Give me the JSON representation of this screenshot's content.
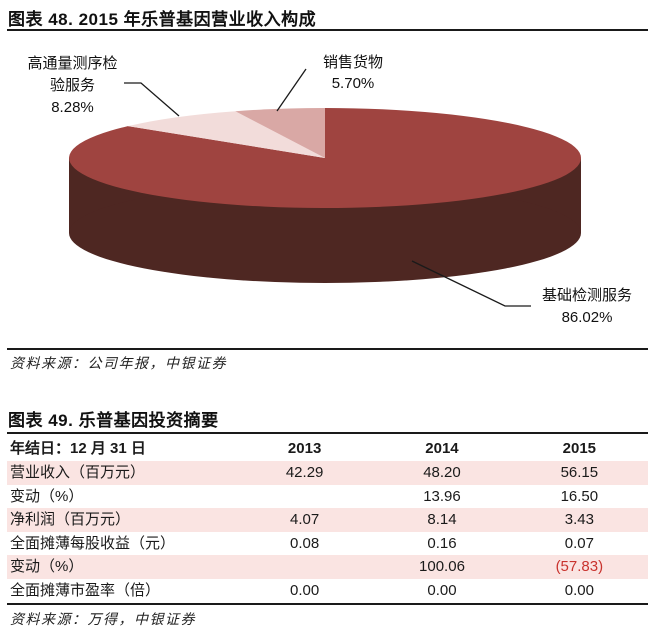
{
  "figure48": {
    "title": "图表 48. 2015 年乐普基因营业收入构成",
    "source": "资料来源：公司年报，中银证券",
    "labels": {
      "seq": {
        "line1": "高通量测序检",
        "line2": "验服务",
        "pct": "8.28%"
      },
      "goods": {
        "line1": "销售货物",
        "pct": "5.70%"
      },
      "basic": {
        "line1": "基础检测服务",
        "pct": "86.02%"
      }
    }
  },
  "chart_data": [
    {
      "type": "pie",
      "style": "3d-pie",
      "title": "2015 年乐普基因营业收入构成",
      "start_angle_deg": 0,
      "direction": "clockwise",
      "side_color": "#4E2722",
      "slices": [
        {
          "label": "基础检测服务",
          "value": 86.02,
          "color": "#9F4440"
        },
        {
          "label": "高通量测序检验服务",
          "value": 8.28,
          "color": "#F2DCDA"
        },
        {
          "label": "销售货物",
          "value": 5.7,
          "color": "#D9A8A5"
        }
      ],
      "legend": "none",
      "data_labels": "category-name-and-percent"
    },
    {
      "type": "table",
      "title": "乐普基因投资摘要",
      "columns": [
        "年结日：12 月 31 日",
        "2013",
        "2014",
        "2015"
      ],
      "rows": [
        [
          "营业收入（百万元）",
          "42.29",
          "48.20",
          "56.15"
        ],
        [
          "变动（%）",
          "",
          "13.96",
          "16.50"
        ],
        [
          "净利润（百万元）",
          "4.07",
          "8.14",
          "3.43"
        ],
        [
          "全面摊薄每股收益（元）",
          "0.08",
          "0.16",
          "0.07"
        ],
        [
          "变动（%）",
          "",
          "100.06",
          "(57.83)"
        ],
        [
          "全面摊薄市盈率（倍）",
          "0.00",
          "0.00",
          "0.00"
        ]
      ]
    }
  ],
  "figure49": {
    "title": "图表 49. 乐普基因投资摘要",
    "source": "资料来源：万得，中银证券",
    "table": {
      "header": [
        "年结日：12 月 31 日",
        "2013",
        "2014",
        "2015"
      ],
      "rows": [
        {
          "label": "营业收入（百万元）",
          "values": [
            "42.29",
            "48.20",
            "56.15"
          ],
          "pink": true,
          "value_colors": [
            "",
            "",
            ""
          ]
        },
        {
          "label": "变动（%）",
          "values": [
            "",
            "13.96",
            "16.50"
          ],
          "pink": false,
          "value_colors": [
            "",
            "",
            ""
          ]
        },
        {
          "label": "净利润（百万元）",
          "values": [
            "4.07",
            "8.14",
            "3.43"
          ],
          "pink": true,
          "value_colors": [
            "",
            "",
            ""
          ]
        },
        {
          "label": "全面摊薄每股收益（元）",
          "values": [
            "0.08",
            "0.16",
            "0.07"
          ],
          "pink": false,
          "value_colors": [
            "",
            "",
            ""
          ]
        },
        {
          "label": "变动（%）",
          "values": [
            "",
            "100.06",
            "(57.83)"
          ],
          "pink": true,
          "value_colors": [
            "",
            "",
            "#C9332E"
          ]
        },
        {
          "label": "全面摊薄市盈率（倍）",
          "values": [
            "0.00",
            "0.00",
            "0.00"
          ],
          "pink": false,
          "value_colors": [
            "",
            "",
            ""
          ]
        }
      ],
      "stripe_color": "#FAE4E2",
      "negative_color": "#C9332E"
    }
  }
}
